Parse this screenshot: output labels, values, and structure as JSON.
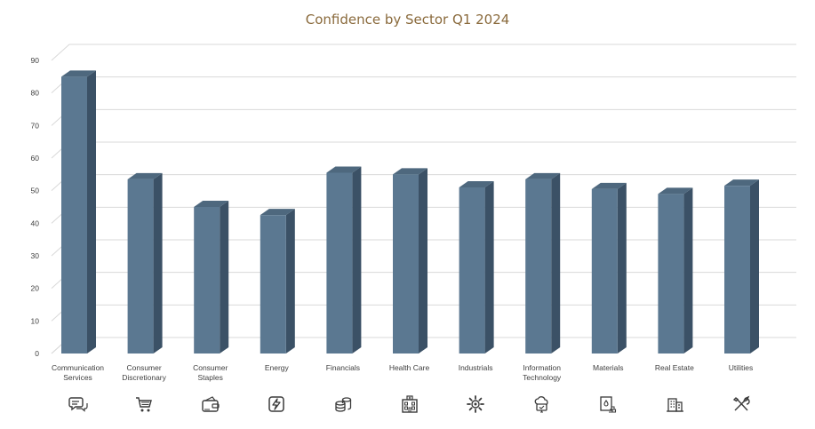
{
  "chart_data": {
    "type": "bar",
    "title": "Confidence by Sector Q1 2024",
    "xlabel": "",
    "ylabel": "",
    "categories": [
      "Communication Services",
      "Consumer Discretionary",
      "Consumer Staples",
      "Energy",
      "Financials",
      "Health Care",
      "Industrials",
      "Information Technology",
      "Materials",
      "Real Estate",
      "Utilities"
    ],
    "label_lines": [
      [
        "Communication",
        "Services"
      ],
      [
        "Consumer",
        "Discretionary"
      ],
      [
        "Consumer",
        "Staples"
      ],
      [
        "Energy"
      ],
      [
        "Financials"
      ],
      [
        "Health Care"
      ],
      [
        "Industrials"
      ],
      [
        "Information",
        "Technology"
      ],
      [
        "Materials"
      ],
      [
        "Real Estate"
      ],
      [
        "Utilities"
      ]
    ],
    "values": [
      85,
      53.5,
      45,
      42.5,
      55.5,
      55,
      51,
      53.5,
      50.5,
      49,
      51.5
    ],
    "ylim": [
      0,
      90
    ],
    "yticks": [
      0,
      10,
      20,
      30,
      40,
      50,
      60,
      70,
      80,
      90
    ],
    "grid": true,
    "legend": "none",
    "style": "3d-column",
    "icons": [
      "chat-icon",
      "shopping-cart-icon",
      "wallet-icon",
      "energy-icon",
      "coins-icon",
      "hospital-icon",
      "gear-icon",
      "cloud-computer-icon",
      "materials-icon",
      "buildings-icon",
      "tools-icon"
    ]
  },
  "colors": {
    "bar_front": "#5b7891",
    "bar_side": "#3b5166",
    "bar_top": "#4e687e",
    "title": "#8a6a3c",
    "grid": "#d9d9d9",
    "axis_text": "#404040",
    "icon": "#3a3a3a"
  }
}
